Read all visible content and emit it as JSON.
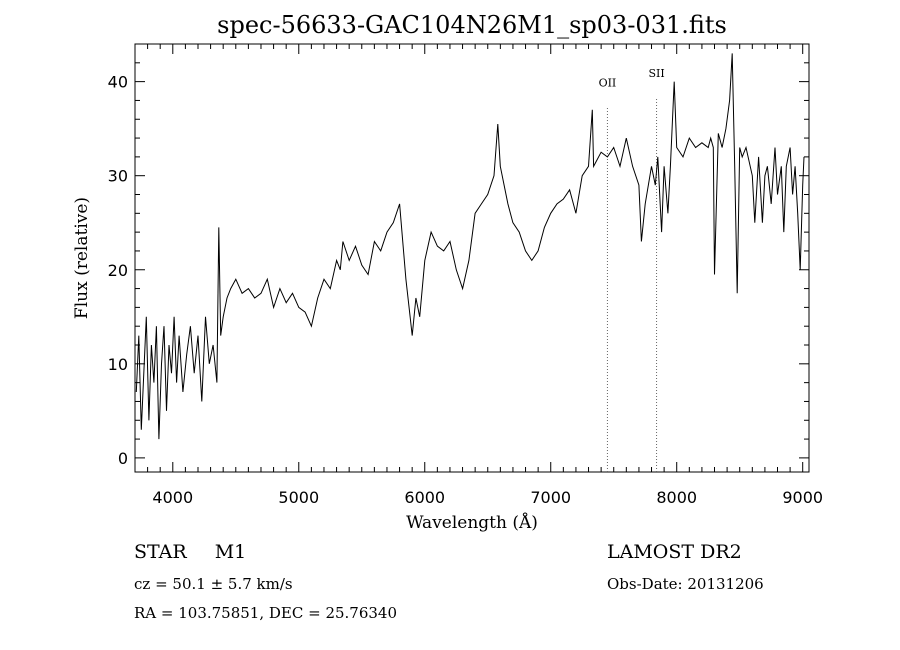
{
  "chart_data": {
    "type": "line",
    "title": "spec-56633-GAC104N26M1_sp03-031.fits",
    "xlabel": "Wavelength (Å)",
    "ylabel": "Flux (relative)",
    "xlim": [
      3700,
      9050
    ],
    "ylim": [
      -1.5,
      44
    ],
    "x_ticks": [
      4000,
      5000,
      6000,
      7000,
      8000,
      9000
    ],
    "x_tick_labels": [
      "4000",
      "5000",
      "6000",
      "7000",
      "8000",
      "9000"
    ],
    "y_ticks": [
      0,
      10,
      20,
      30,
      40
    ],
    "y_tick_labels": [
      "0",
      "10",
      "20",
      "30",
      "40"
    ],
    "grid": false,
    "series": [
      {
        "color": "#000000",
        "x": [
          3710,
          3730,
          3750,
          3770,
          3790,
          3810,
          3830,
          3850,
          3870,
          3890,
          3910,
          3930,
          3950,
          3970,
          3990,
          4010,
          4030,
          4050,
          4080,
          4110,
          4140,
          4170,
          4200,
          4230,
          4260,
          4290,
          4320,
          4350,
          4365,
          4380,
          4400,
          4430,
          4460,
          4500,
          4550,
          4600,
          4650,
          4700,
          4750,
          4800,
          4850,
          4900,
          4950,
          5000,
          5050,
          5100,
          5150,
          5200,
          5250,
          5300,
          5330,
          5350,
          5400,
          5450,
          5500,
          5550,
          5600,
          5650,
          5700,
          5750,
          5800,
          5850,
          5880,
          5900,
          5930,
          5960,
          6000,
          6050,
          6100,
          6150,
          6200,
          6250,
          6300,
          6350,
          6400,
          6450,
          6500,
          6550,
          6580,
          6600,
          6630,
          6660,
          6700,
          6750,
          6800,
          6850,
          6900,
          6950,
          7000,
          7050,
          7100,
          7150,
          7200,
          7250,
          7300,
          7330,
          7340,
          7360,
          7400,
          7450,
          7500,
          7550,
          7600,
          7650,
          7700,
          7720,
          7750,
          7800,
          7830,
          7850,
          7880,
          7900,
          7930,
          7950,
          7980,
          8000,
          8050,
          8100,
          8150,
          8200,
          8250,
          8270,
          8290,
          8300,
          8330,
          8360,
          8390,
          8420,
          8440,
          8460,
          8480,
          8500,
          8520,
          8550,
          8600,
          8620,
          8650,
          8680,
          8700,
          8720,
          8750,
          8780,
          8800,
          8830,
          8850,
          8870,
          8900,
          8920,
          8940,
          8960,
          8980,
          9000,
          9010
        ],
        "y": [
          7,
          13,
          3,
          9,
          15,
          4,
          12,
          8,
          14,
          2,
          10,
          14,
          5,
          12,
          9,
          15,
          8,
          13,
          7,
          11,
          14,
          9,
          13,
          6,
          15,
          10,
          12,
          8,
          24.5,
          13,
          15,
          17,
          18,
          19,
          17.5,
          18,
          17,
          17.5,
          19,
          16,
          18,
          16.5,
          17.5,
          16,
          15.5,
          14,
          17,
          19,
          18,
          21,
          20,
          23,
          21,
          22.5,
          20.5,
          19.5,
          23,
          22,
          24,
          25,
          27,
          19,
          15.5,
          13,
          17,
          15,
          21,
          24,
          22.5,
          22,
          23,
          20,
          18,
          21,
          26,
          27,
          28,
          30,
          35.5,
          31,
          29,
          27,
          25,
          24,
          22,
          21,
          22,
          24.5,
          26,
          27,
          27.5,
          28.5,
          26,
          30,
          31,
          37,
          31,
          31.5,
          32.5,
          32,
          33,
          31,
          34,
          31,
          29,
          23,
          27,
          31,
          29,
          32,
          24,
          31,
          26,
          31,
          40,
          33,
          32,
          34,
          33,
          33.5,
          33,
          34,
          33,
          19.5,
          34.5,
          33,
          35,
          38,
          43,
          31,
          17.5,
          33,
          32,
          33,
          30,
          25,
          32,
          25,
          30,
          31,
          27,
          33,
          28,
          31,
          24,
          31,
          33,
          28,
          31,
          26,
          20,
          29,
          32
        ]
      }
    ],
    "annotations": [
      {
        "label": "OII",
        "x": 7450,
        "label_y": 39.5
      },
      {
        "label": "SII",
        "x": 7840,
        "label_y": 40.5
      }
    ]
  },
  "info": {
    "object_class": "STAR",
    "subclass": "M1",
    "cz": "cz = 50.1 ± 5.7 km/s",
    "coords": "RA = 103.75851, DEC =  25.76340",
    "survey": "LAMOST DR2",
    "obs_date": "Obs-Date: 20131206"
  }
}
